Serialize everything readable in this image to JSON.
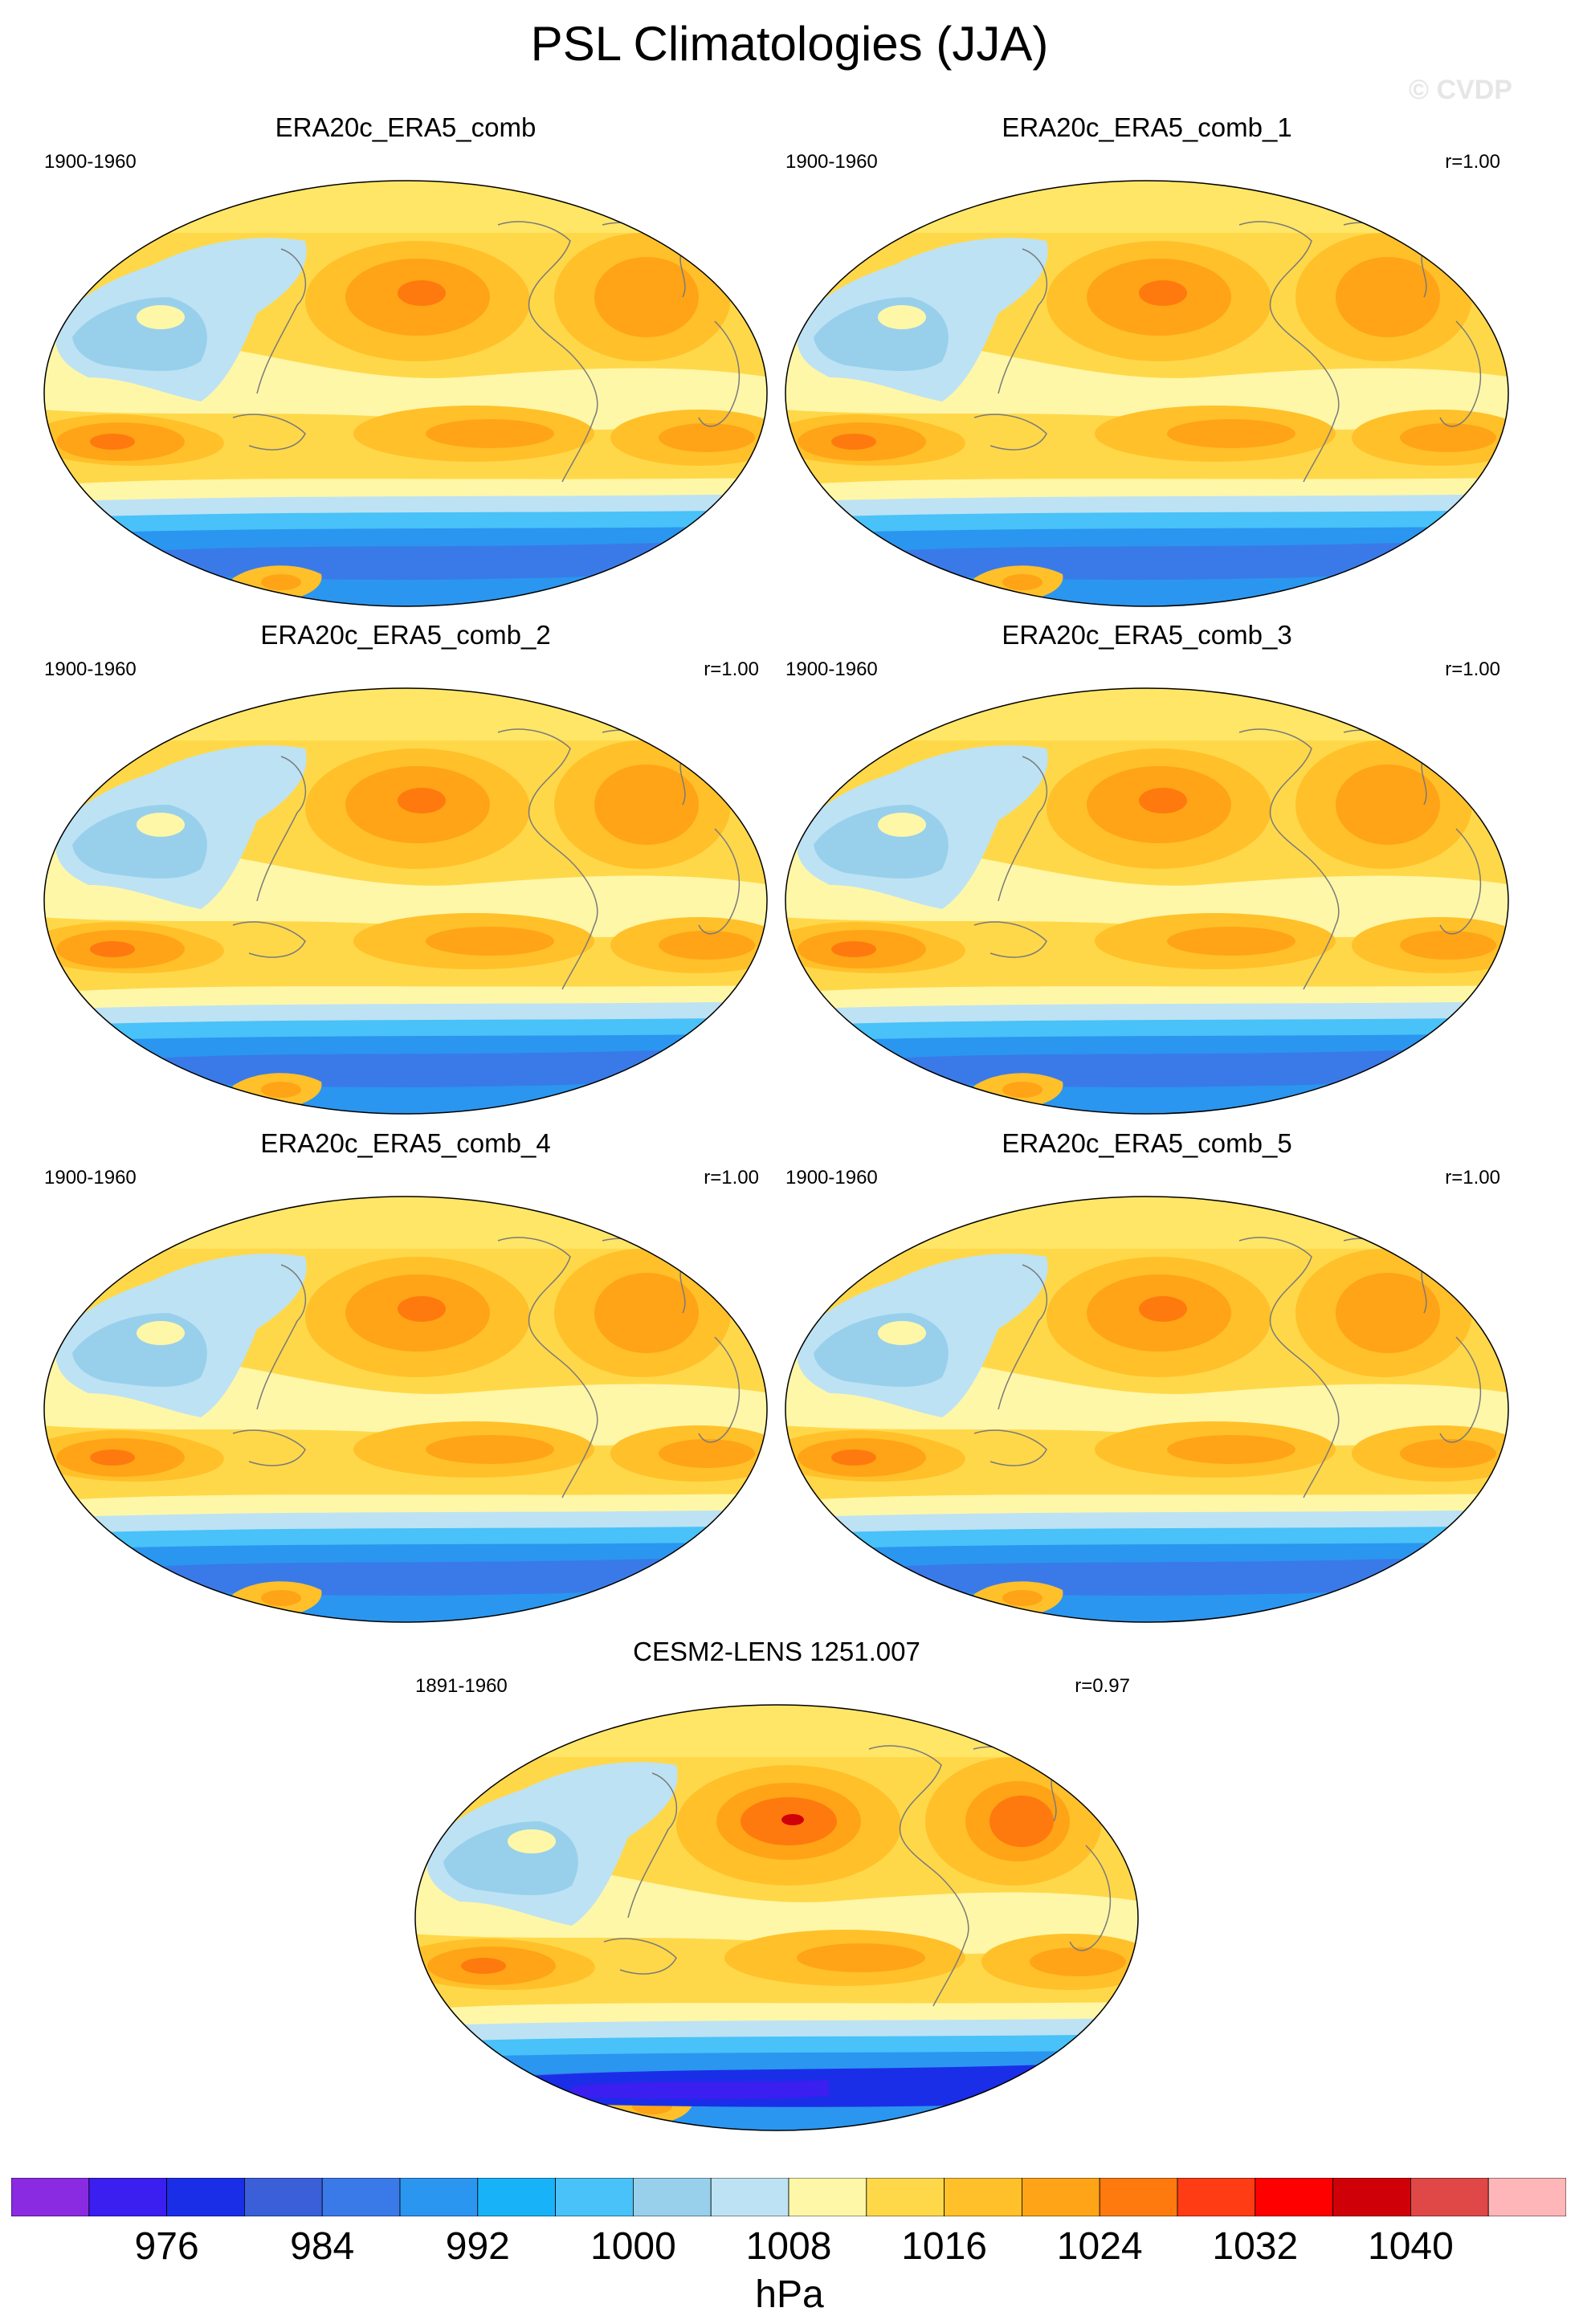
{
  "figure": {
    "title": "PSL Climatologies (JJA)",
    "watermark": "© CVDP"
  },
  "panels": [
    {
      "title": "ERA20c_ERA5_comb",
      "period": "1900-1960",
      "corr": ""
    },
    {
      "title": "ERA20c_ERA5_comb_1",
      "period": "1900-1960",
      "corr": "r=1.00"
    },
    {
      "title": "ERA20c_ERA5_comb_2",
      "period": "1900-1960",
      "corr": "r=1.00"
    },
    {
      "title": "ERA20c_ERA5_comb_3",
      "period": "1900-1960",
      "corr": "r=1.00"
    },
    {
      "title": "ERA20c_ERA5_comb_4",
      "period": "1900-1960",
      "corr": "r=1.00"
    },
    {
      "title": "ERA20c_ERA5_comb_5",
      "period": "1900-1960",
      "corr": "r=1.00"
    },
    {
      "title": "CESM2-LENS 1251.007",
      "period": "1891-1960",
      "corr": "r=0.97"
    }
  ],
  "colorbar": {
    "units": "hPa",
    "ticks": [
      "976",
      "984",
      "992",
      "1000",
      "1008",
      "1016",
      "1024",
      "1032",
      "1040"
    ],
    "colors": [
      "#8a2be2",
      "#3b1ef0",
      "#1a2ee8",
      "#3a5fd8",
      "#3a7ae8",
      "#2a96f0",
      "#18b2f8",
      "#48c2f8",
      "#98d0ec",
      "#bde2f4",
      "#fff7a8",
      "#ffd84a",
      "#ffc02a",
      "#ffa416",
      "#ff7a0e",
      "#ff3c14",
      "#ff0000",
      "#d00008",
      "#e04848",
      "#ffb6b8"
    ]
  }
}
